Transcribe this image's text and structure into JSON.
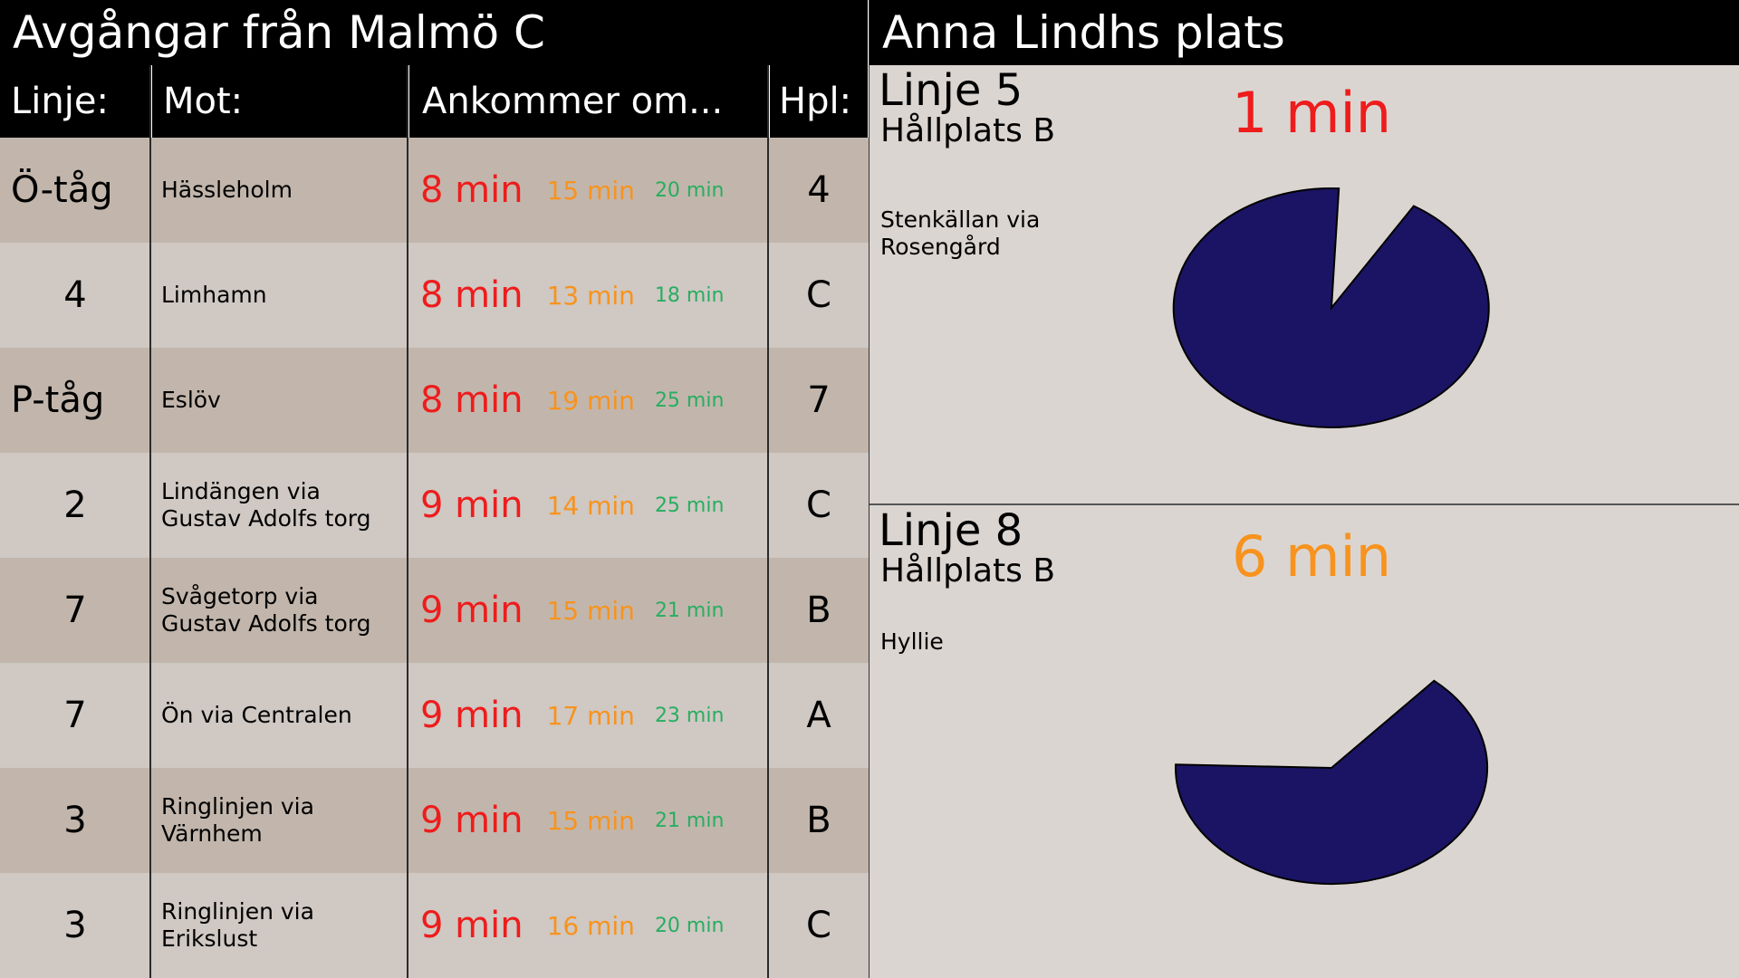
{
  "departures": {
    "title": "Avgångar från Malmö C",
    "headers": {
      "line": "Linje:",
      "dest": "Mot:",
      "arrives": "Ankommer om...",
      "stop": "Hpl:"
    },
    "rows": [
      {
        "line": "Ö-tåg",
        "dest": "Hässleholm",
        "t1": "8 min",
        "t2": "15 min",
        "t3": "20 min",
        "stop": "4"
      },
      {
        "line": "4",
        "dest": "Limhamn",
        "t1": "8 min",
        "t2": "13 min",
        "t3": "18 min",
        "stop": "C"
      },
      {
        "line": "P-tåg",
        "dest": "Eslöv",
        "t1": "8 min",
        "t2": "19 min",
        "t3": "25 min",
        "stop": "7"
      },
      {
        "line": "2",
        "dest": "Lindängen via\nGustav Adolfs torg",
        "t1": "9 min",
        "t2": "14 min",
        "t3": "25 min",
        "stop": "C"
      },
      {
        "line": "7",
        "dest": "Svågetorp via\nGustav Adolfs torg",
        "t1": "9 min",
        "t2": "15 min",
        "t3": "21 min",
        "stop": "B"
      },
      {
        "line": "7",
        "dest": "Ön via Centralen",
        "t1": "9 min",
        "t2": "17 min",
        "t3": "23 min",
        "stop": "A"
      },
      {
        "line": "3",
        "dest": "Ringlinjen via\nVärnhem",
        "t1": "9 min",
        "t2": "15 min",
        "t3": "21 min",
        "stop": "B"
      },
      {
        "line": "3",
        "dest": "Ringlinjen via\nErikslust",
        "t1": "9 min",
        "t2": "16 min",
        "t3": "20 min",
        "stop": "C"
      }
    ]
  },
  "stop_view": {
    "title": "Anna Lindhs plats",
    "panels": [
      {
        "line": "Linje 5",
        "stop": "Hållplats B",
        "dest": "Stenkällan via\nRosengård",
        "minutes": "1 min",
        "minutes_color": "#ee1c1c",
        "remaining_fraction": 0.92
      },
      {
        "line": "Linje 8",
        "stop": "Hållplats B",
        "dest": "Hyllie",
        "minutes": "6 min",
        "minutes_color": "#f7931e",
        "remaining_fraction": 0.64
      }
    ]
  },
  "colors": {
    "pie_fill": "#1b1464",
    "row_dark": "#c2b6ac",
    "row_light": "#cfc8c3",
    "time_1": "#ee1c1c",
    "time_2": "#f7931e",
    "time_3": "#27ae60"
  }
}
